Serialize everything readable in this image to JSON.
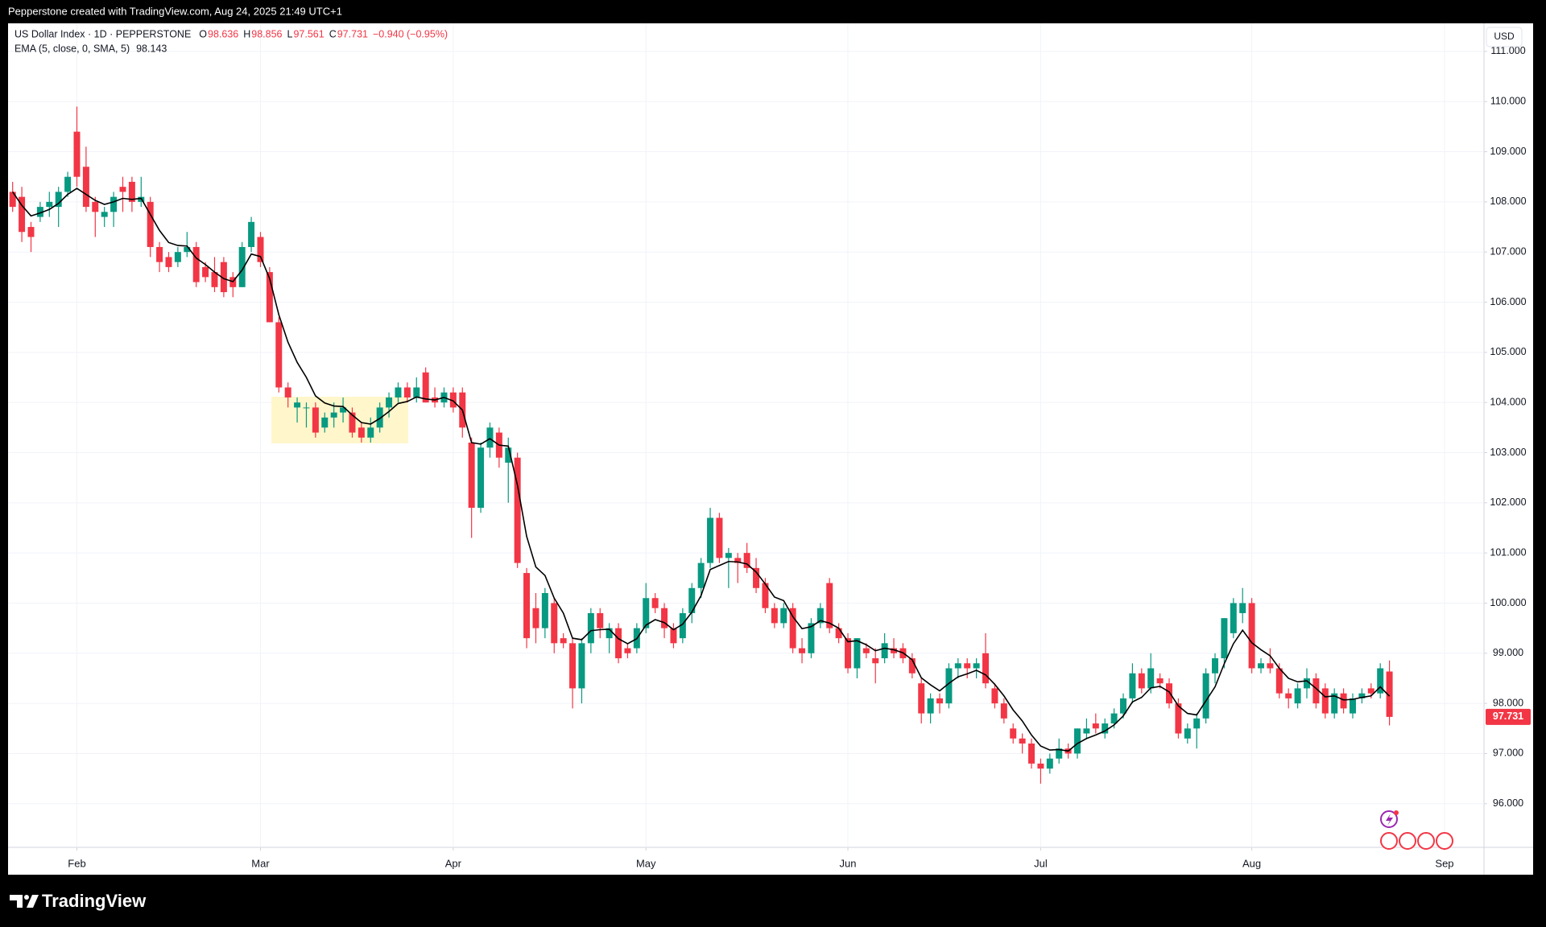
{
  "header": {
    "watermark": "Pepperstone created with TradingView.com, Aug 24, 2025 21:49 UTC+1",
    "brand": "TradingView"
  },
  "chart_data": {
    "type": "candlestick",
    "title": "US Dollar Index · 1D · PEPPERSTONE",
    "ohlc_label": [
      {
        "key": "O",
        "value": "98.636"
      },
      {
        "key": "H",
        "value": "98.856"
      },
      {
        "key": "L",
        "value": "97.561"
      },
      {
        "key": "C",
        "value": "97.731"
      },
      {
        "key": null,
        "value": "−0.940 (−0.95%)"
      }
    ],
    "currency": "USD",
    "up_color": "#089981",
    "down_color": "#f23645",
    "grid": true,
    "open": [
      108.2,
      108.1,
      107.5,
      107.7,
      107.9,
      107.9,
      108.2,
      109.4,
      108.7,
      108.0,
      107.7,
      107.8,
      108.3,
      108.4,
      108.0,
      108.0,
      107.1,
      106.9,
      106.8,
      107.0,
      107.1,
      106.7,
      106.6,
      106.8,
      106.5,
      106.3,
      107.1,
      107.3,
      106.6,
      105.6,
      104.3,
      103.9,
      103.9,
      103.9,
      103.5,
      103.7,
      103.8,
      103.8,
      103.5,
      103.3,
      103.5,
      103.9,
      104.1,
      104.3,
      104.1,
      104.6,
      104.1,
      104.0,
      104.2,
      104.2,
      103.2,
      101.9,
      103.1,
      103.4,
      102.8,
      102.9,
      100.6,
      99.9,
      99.5,
      100.0,
      99.3,
      99.2,
      98.3,
      99.2,
      99.8,
      99.3,
      99.5,
      99.1,
      99.1,
      99.5,
      100.1,
      99.9,
      99.5,
      99.3,
      99.8,
      100.3,
      100.8,
      101.7,
      100.9,
      100.9,
      101.0,
      100.7,
      100.4,
      99.9,
      99.6,
      99.9,
      99.1,
      99.0,
      99.6,
      100.4,
      99.5,
      99.3,
      98.7,
      99.1,
      98.9,
      98.9,
      99.1,
      99.1,
      98.9,
      98.4,
      97.8,
      98.1,
      98.0,
      98.7,
      98.8,
      98.7,
      99.0,
      98.3,
      98.0,
      97.5,
      97.3,
      97.2,
      96.8,
      96.7,
      96.9,
      97.1,
      97.0,
      97.4,
      97.6,
      97.4,
      97.6,
      97.8,
      98.1,
      98.6,
      98.3,
      98.5,
      98.4,
      98.0,
      97.3,
      97.5,
      97.7,
      98.6,
      98.9,
      99.4,
      99.8,
      100.0,
      98.7,
      98.8,
      98.7,
      98.2,
      98.0,
      98.3,
      98.5,
      98.3,
      97.8,
      98.2,
      97.8,
      98.1,
      98.3,
      98.2,
      98.636
    ],
    "high": [
      108.4,
      108.3,
      107.6,
      108.0,
      108.2,
      108.3,
      108.6,
      109.9,
      109.1,
      108.1,
      107.9,
      108.2,
      108.5,
      108.5,
      108.5,
      108.1,
      107.2,
      107.0,
      107.1,
      107.4,
      107.2,
      106.8,
      106.9,
      106.9,
      106.6,
      107.2,
      107.7,
      107.4,
      106.7,
      105.7,
      104.4,
      104.1,
      104.0,
      104.0,
      103.8,
      104.0,
      104.1,
      103.9,
      103.6,
      103.7,
      104.0,
      104.2,
      104.4,
      104.4,
      104.5,
      104.7,
      104.3,
      104.3,
      104.3,
      104.3,
      103.3,
      103.2,
      103.6,
      103.5,
      103.3,
      103.0,
      100.7,
      100.2,
      100.3,
      100.1,
      99.4,
      99.3,
      99.3,
      99.9,
      99.9,
      99.6,
      99.6,
      99.2,
      99.6,
      100.4,
      100.2,
      100.0,
      99.6,
      99.9,
      100.4,
      100.9,
      101.9,
      101.8,
      101.1,
      101.0,
      101.2,
      100.9,
      100.5,
      100.0,
      100.0,
      100.0,
      99.3,
      99.7,
      100.0,
      100.5,
      99.6,
      99.4,
      99.3,
      99.2,
      99.1,
      99.4,
      99.3,
      99.2,
      99.0,
      98.5,
      98.2,
      98.2,
      98.8,
      98.9,
      98.9,
      98.9,
      99.4,
      98.4,
      98.1,
      97.6,
      97.4,
      97.3,
      96.9,
      97.0,
      97.3,
      97.2,
      97.5,
      97.7,
      97.8,
      97.7,
      97.9,
      98.2,
      98.8,
      98.7,
      99.0,
      98.6,
      98.5,
      98.1,
      97.6,
      97.8,
      98.7,
      99.0,
      99.7,
      100.1,
      100.3,
      100.1,
      98.9,
      99.1,
      98.8,
      98.3,
      98.4,
      98.7,
      98.6,
      98.4,
      98.3,
      98.3,
      98.2,
      98.3,
      98.4,
      98.8,
      98.856
    ],
    "low": [
      107.8,
      107.2,
      107.0,
      107.6,
      107.7,
      107.5,
      108.1,
      108.3,
      107.8,
      107.3,
      107.5,
      107.5,
      107.8,
      107.8,
      107.9,
      106.9,
      106.6,
      106.6,
      106.7,
      106.9,
      106.3,
      106.4,
      106.2,
      106.1,
      106.1,
      106.3,
      107.0,
      106.7,
      105.6,
      104.2,
      103.9,
      103.6,
      103.5,
      103.3,
      103.4,
      103.5,
      103.6,
      103.3,
      103.2,
      103.2,
      103.4,
      103.7,
      104.0,
      104.0,
      104.0,
      104.0,
      103.9,
      103.9,
      103.8,
      103.3,
      101.3,
      101.8,
      102.9,
      102.7,
      102.0,
      100.7,
      99.1,
      99.2,
      99.3,
      99.0,
      99.1,
      97.9,
      98.0,
      99.0,
      99.3,
      99.0,
      98.8,
      98.9,
      99.0,
      99.4,
      99.8,
      99.3,
      99.1,
      99.2,
      99.6,
      100.1,
      100.7,
      100.8,
      100.3,
      100.4,
      100.6,
      100.2,
      99.8,
      99.5,
      99.5,
      99.0,
      98.8,
      98.9,
      99.5,
      99.4,
      99.2,
      98.6,
      98.5,
      98.9,
      98.4,
      98.8,
      98.9,
      98.8,
      98.5,
      97.6,
      97.6,
      97.8,
      97.9,
      98.5,
      98.5,
      98.5,
      98.3,
      97.9,
      97.6,
      97.2,
      97.0,
      96.7,
      96.4,
      96.6,
      96.8,
      96.9,
      96.9,
      97.3,
      97.4,
      97.3,
      97.5,
      97.7,
      98.0,
      98.2,
      98.2,
      98.3,
      97.9,
      97.3,
      97.2,
      97.1,
      97.6,
      98.4,
      98.7,
      99.3,
      99.6,
      98.6,
      98.6,
      98.6,
      98.1,
      97.9,
      97.9,
      98.1,
      97.9,
      97.7,
      97.7,
      97.8,
      97.7,
      98.0,
      98.1,
      98.1,
      97.561
    ],
    "close": [
      107.9,
      107.4,
      107.3,
      107.9,
      108.0,
      108.2,
      108.5,
      108.5,
      107.9,
      107.8,
      107.8,
      108.1,
      108.2,
      108.0,
      108.1,
      107.1,
      106.8,
      106.7,
      107.0,
      107.1,
      106.4,
      106.5,
      106.3,
      106.2,
      106.3,
      107.1,
      107.6,
      106.8,
      105.6,
      104.3,
      104.1,
      104.0,
      103.9,
      103.4,
      103.7,
      103.8,
      103.9,
      103.4,
      103.3,
      103.5,
      103.9,
      104.1,
      104.3,
      104.1,
      104.3,
      104.0,
      104.0,
      104.2,
      103.9,
      103.5,
      101.9,
      103.1,
      103.5,
      102.9,
      103.1,
      100.8,
      99.3,
      99.5,
      100.2,
      99.2,
      99.2,
      98.3,
      99.2,
      99.8,
      99.5,
      99.5,
      98.9,
      99.0,
      99.5,
      100.1,
      99.9,
      99.5,
      99.2,
      99.8,
      100.3,
      100.8,
      101.7,
      100.9,
      101.0,
      100.8,
      100.7,
      100.3,
      99.9,
      99.6,
      99.9,
      99.1,
      99.0,
      99.6,
      99.9,
      99.5,
      99.3,
      98.7,
      99.3,
      99.0,
      98.8,
      99.2,
      99.0,
      98.9,
      98.6,
      97.8,
      98.1,
      98.0,
      98.7,
      98.8,
      98.7,
      98.8,
      98.4,
      98.0,
      97.7,
      97.3,
      97.2,
      96.8,
      96.7,
      96.9,
      97.1,
      97.0,
      97.5,
      97.5,
      97.5,
      97.6,
      97.8,
      98.1,
      98.6,
      98.3,
      98.7,
      98.4,
      98.0,
      97.4,
      97.5,
      97.7,
      98.6,
      98.9,
      99.7,
      100.0,
      100.0,
      98.7,
      98.8,
      98.7,
      98.2,
      98.1,
      98.3,
      98.5,
      98.0,
      97.8,
      98.2,
      97.9,
      98.1,
      98.2,
      98.2,
      98.7,
      97.731
    ],
    "overlays": [
      {
        "name": "EMA (5, close, 0, SMA, 5)",
        "color": "#000000",
        "values": [
          108.2,
          107.93,
          107.72,
          107.78,
          107.85,
          107.97,
          108.15,
          108.27,
          108.15,
          108.03,
          107.95,
          108.0,
          108.07,
          108.05,
          108.07,
          107.75,
          107.43,
          107.19,
          107.13,
          107.12,
          106.88,
          106.75,
          106.6,
          106.47,
          106.41,
          106.64,
          106.96,
          106.91,
          106.47,
          105.75,
          105.2,
          104.8,
          104.5,
          104.13,
          103.99,
          103.93,
          103.92,
          103.75,
          103.6,
          103.57,
          103.68,
          103.82,
          103.98,
          104.02,
          104.11,
          104.07,
          104.05,
          104.1,
          104.03,
          103.85,
          103.2,
          103.17,
          103.28,
          103.15,
          103.13,
          102.35,
          101.33,
          100.72,
          100.55,
          100.1,
          99.8,
          99.3,
          99.27,
          99.45,
          99.47,
          99.48,
          99.29,
          99.19,
          99.29,
          99.56,
          99.67,
          99.61,
          99.47,
          99.58,
          99.82,
          100.15,
          100.67,
          100.75,
          100.83,
          100.82,
          100.78,
          100.62,
          100.38,
          100.12,
          100.05,
          99.73,
          99.49,
          99.53,
          99.65,
          99.6,
          99.5,
          99.23,
          99.25,
          99.17,
          99.05,
          99.1,
          99.07,
          99.01,
          98.87,
          98.51,
          98.37,
          98.25,
          98.4,
          98.53,
          98.59,
          98.66,
          98.57,
          98.38,
          98.15,
          97.87,
          97.65,
          97.37,
          97.15,
          97.07,
          97.08,
          97.05,
          97.2,
          97.3,
          97.37,
          97.45,
          97.57,
          97.75,
          98.03,
          98.12,
          98.31,
          98.34,
          98.23,
          97.95,
          97.8,
          97.77,
          98.05,
          98.33,
          98.79,
          99.19,
          99.46,
          99.21,
          99.07,
          98.95,
          98.7,
          98.5,
          98.43,
          98.45,
          98.3,
          98.13,
          98.15,
          98.07,
          98.08,
          98.12,
          98.15,
          98.33,
          98.143
        ]
      }
    ],
    "xlim": [
      -0.5,
      160.3
    ],
    "xticks": [
      {
        "value": 7,
        "label": "Feb"
      },
      {
        "value": 27,
        "label": "Mar"
      },
      {
        "value": 48,
        "label": "Apr"
      },
      {
        "value": 69,
        "label": "May"
      },
      {
        "value": 91,
        "label": "Jun"
      },
      {
        "value": 112,
        "label": "Jul"
      },
      {
        "value": 135,
        "label": "Aug"
      },
      {
        "value": 156,
        "label": "Sep"
      }
    ],
    "ylim": [
      95.13,
      111.56
    ],
    "yticks": [
      {
        "value": 96,
        "label": "96.000"
      },
      {
        "value": 97,
        "label": "97.000"
      },
      {
        "value": 98,
        "label": "98.000"
      },
      {
        "value": 99,
        "label": "99.000"
      },
      {
        "value": 100,
        "label": "100.000"
      },
      {
        "value": 101,
        "label": "101.000"
      },
      {
        "value": 102,
        "label": "102.000"
      },
      {
        "value": 103,
        "label": "103.000"
      },
      {
        "value": 104,
        "label": "104.000"
      },
      {
        "value": 105,
        "label": "105.000"
      },
      {
        "value": 106,
        "label": "106.000"
      },
      {
        "value": 107,
        "label": "107.000"
      },
      {
        "value": 108,
        "label": "108.000"
      },
      {
        "value": 109,
        "label": "109.000"
      },
      {
        "value": 110,
        "label": "110.000"
      },
      {
        "value": 111,
        "label": "111.000"
      }
    ]
  }
}
